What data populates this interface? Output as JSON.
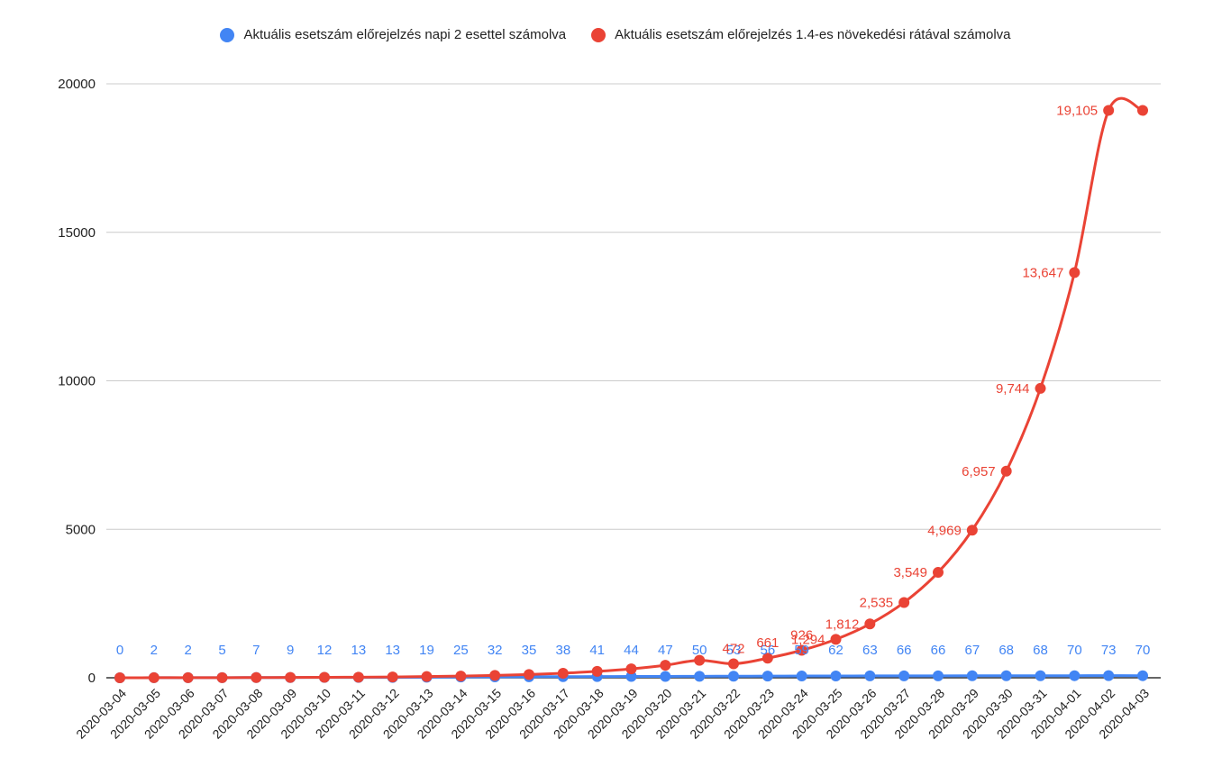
{
  "chart_data": {
    "type": "line",
    "title": "",
    "xlabel": "",
    "ylabel": "",
    "ylim": [
      0,
      20000
    ],
    "yticks": [
      "0",
      "5000",
      "10000",
      "15000",
      "20000"
    ],
    "grid": "horizontal",
    "legend_position": "top",
    "categories": [
      "2020-03-04",
      "2020-03-05",
      "2020-03-06",
      "2020-03-07",
      "2020-03-08",
      "2020-03-09",
      "2020-03-10",
      "2020-03-11",
      "2020-03-12",
      "2020-03-13",
      "2020-03-14",
      "2020-03-15",
      "2020-03-16",
      "2020-03-17",
      "2020-03-18",
      "2020-03-19",
      "2020-03-20",
      "2020-03-21",
      "2020-03-22",
      "2020-03-23",
      "2020-03-24",
      "2020-03-25",
      "2020-03-26",
      "2020-03-27",
      "2020-03-28",
      "2020-03-29",
      "2020-03-30",
      "2020-03-31",
      "2020-04-01",
      "2020-04-02",
      "2020-04-03"
    ],
    "series": [
      {
        "name": "Aktuális esetszám előrejelzés napi 2 esettel számolva",
        "color": "#4285f4",
        "values": [
          0,
          2,
          2,
          5,
          7,
          9,
          12,
          13,
          13,
          19,
          25,
          32,
          35,
          38,
          41,
          44,
          47,
          50,
          53,
          56,
          59,
          62,
          63,
          66,
          66,
          67,
          68,
          68,
          70,
          73,
          70
        ],
        "labels": [
          "0",
          "2",
          "2",
          "5",
          "7",
          "9",
          "12",
          "13",
          "13",
          "19",
          "25",
          "32",
          "35",
          "38",
          "41",
          "44",
          "47",
          "50",
          "53",
          "56",
          "59",
          "62",
          "63",
          "66",
          "66",
          "67",
          "68",
          "68",
          "70",
          "73",
          "70"
        ]
      },
      {
        "name": "Aktuális esetszám előrejelzés 1.4-es növekedési rátával számolva",
        "color": "#ea4335",
        "values": [
          0,
          2,
          3,
          5,
          8,
          11,
          15,
          20,
          28,
          40,
          56,
          78,
          110,
          153,
          215,
          301,
          421,
          589,
          472,
          661,
          926,
          1294,
          1812,
          2535,
          3549,
          4969,
          6957,
          9744,
          13647,
          19105,
          19105
        ],
        "labels": [
          "",
          "",
          "",
          "",
          "",
          "",
          "",
          "",
          "",
          "",
          "",
          "",
          "",
          "",
          "",
          "",
          "",
          "",
          "472",
          "661",
          "926",
          "1,294",
          "1,812",
          "2,535",
          "3,549",
          "4,969",
          "6,957",
          "9,744",
          "13,647",
          "19,105",
          ""
        ]
      }
    ]
  }
}
